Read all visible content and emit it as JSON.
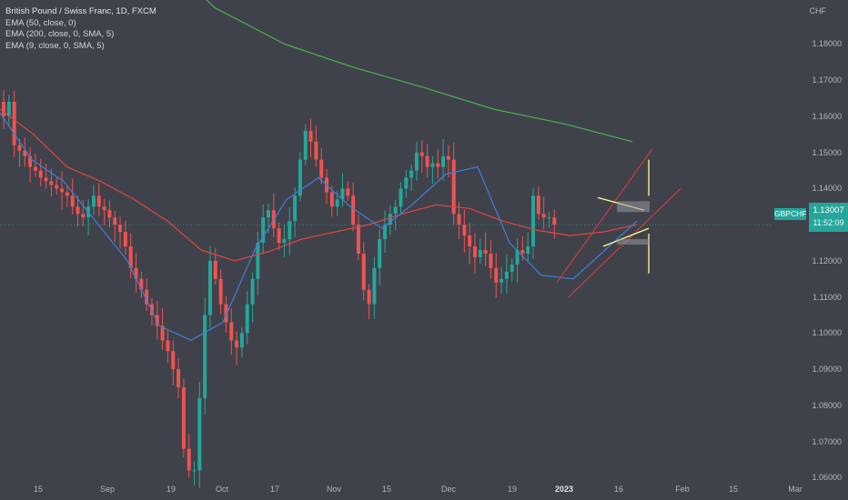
{
  "legend": {
    "title": "British Pound / Swiss Franc, 1D, FXCM",
    "ema50": "EMA (50, close, 0)",
    "ema200": "EMA (200, close, 0, SMA, 5)",
    "ema9": "EMA (9, close, 0, SMA, 5)"
  },
  "currency": "CHF",
  "symbol_tag": "GBPCHF",
  "last_price": "1.13007",
  "countdown": "11:52:09",
  "colors": {
    "background": "#40424b",
    "up": "#26a69a",
    "down": "#ef5350",
    "ema50": "#e0463f",
    "ema200": "#4caf50",
    "ema9": "#3f7fd9",
    "channel": "#e23b3b",
    "annotation": "#ffff8d"
  },
  "chart_data": {
    "type": "candlestick",
    "symbol": "GBPCHF",
    "timeframe": "1D",
    "y_ticks": [
      "1.18000",
      "1.17000",
      "1.16000",
      "1.15000",
      "1.14000",
      "1.13000",
      "1.12000",
      "1.11000",
      "1.10000",
      "1.09000",
      "1.08000",
      "1.07000",
      "1.06000"
    ],
    "x_ticks": [
      {
        "label": "15"
      },
      {
        "label": "Sep"
      },
      {
        "label": "19"
      },
      {
        "label": "Oct"
      },
      {
        "label": "17"
      },
      {
        "label": "Nov"
      },
      {
        "label": "15"
      },
      {
        "label": "Dec"
      },
      {
        "label": "19"
      },
      {
        "label": "2023",
        "bold": true
      },
      {
        "label": "16"
      },
      {
        "label": "Feb"
      },
      {
        "label": "15"
      },
      {
        "label": "Mar"
      }
    ],
    "ylim": [
      1.0538,
      1.1922
    ],
    "close_path": [
      [
        1.16,
        1.164,
        1.152,
        1.1505,
        1.149,
        1.146,
        1.145,
        1.143,
        1.142,
        1.141,
        1.14,
        1.139,
        1.138,
        1.135,
        1.133,
        1.132,
        1.135,
        1.138,
        1.135,
        1.134,
        1.132,
        1.13,
        1.128,
        1.124,
        1.118,
        1.115,
        1.112,
        1.108,
        1.105,
        1.102,
        1.098,
        1.095,
        1.09,
        1.085,
        1.068,
        1.062,
        1.062,
        1.082,
        1.105,
        1.12,
        1.115,
        1.108,
        1.103,
        1.098,
        1.096,
        1.1,
        1.108,
        1.115,
        1.125,
        1.132,
        1.134,
        1.129,
        1.125,
        1.126,
        1.131,
        1.138,
        1.148,
        1.156,
        1.153,
        1.148,
        1.143,
        1.139,
        1.135,
        1.137,
        1.14,
        1.138,
        1.13,
        1.122,
        1.112,
        1.108,
        1.118,
        1.126,
        1.13,
        1.133,
        1.135,
        1.14,
        1.143,
        1.145,
        1.15,
        1.149,
        1.146,
        1.147,
        1.146,
        1.149,
        1.148,
        1.133,
        1.13,
        1.127,
        1.124,
        1.121,
        1.123,
        1.122,
        1.118,
        1.114,
        1.115,
        1.117,
        1.119,
        1.123,
        1.122,
        1.124,
        1.138,
        1.133,
        1.132,
        1.132,
        1.13
      ]
    ],
    "ema50": [
      1.162,
      1.155,
      1.146,
      1.142,
      1.137,
      1.131,
      1.123,
      1.12,
      1.1225,
      1.126,
      1.128,
      1.13,
      1.133,
      1.1355,
      1.1345,
      1.131,
      1.1285,
      1.127,
      1.128,
      1.13
    ],
    "ema200": [
      1.208,
      1.19,
      1.18,
      1.1735,
      1.168,
      1.162,
      1.158,
      1.153
    ],
    "ema9": [
      1.161,
      1.148,
      1.142,
      1.131,
      1.12,
      1.102,
      1.098,
      1.103,
      1.123,
      1.137,
      1.143,
      1.135,
      1.129,
      1.136,
      1.144,
      1.146,
      1.125,
      1.116,
      1.115,
      1.123,
      1.131
    ],
    "annotations": [
      {
        "kind": "channel_upper",
        "from": [
          1.114
        ],
        "to": [
          1.151
        ]
      },
      {
        "kind": "channel_lower",
        "from": [
          1.11
        ],
        "to": [
          1.14
        ]
      },
      {
        "kind": "triangle_top",
        "from": 1.1375,
        "to": 1.134
      },
      {
        "kind": "triangle_bottom",
        "from": 1.124,
        "to": 1.129
      },
      {
        "kind": "target_vertical",
        "from": 1.148,
        "to": 1.138
      },
      {
        "kind": "target_vertical",
        "from": 1.1275,
        "to": 1.1165
      }
    ]
  }
}
